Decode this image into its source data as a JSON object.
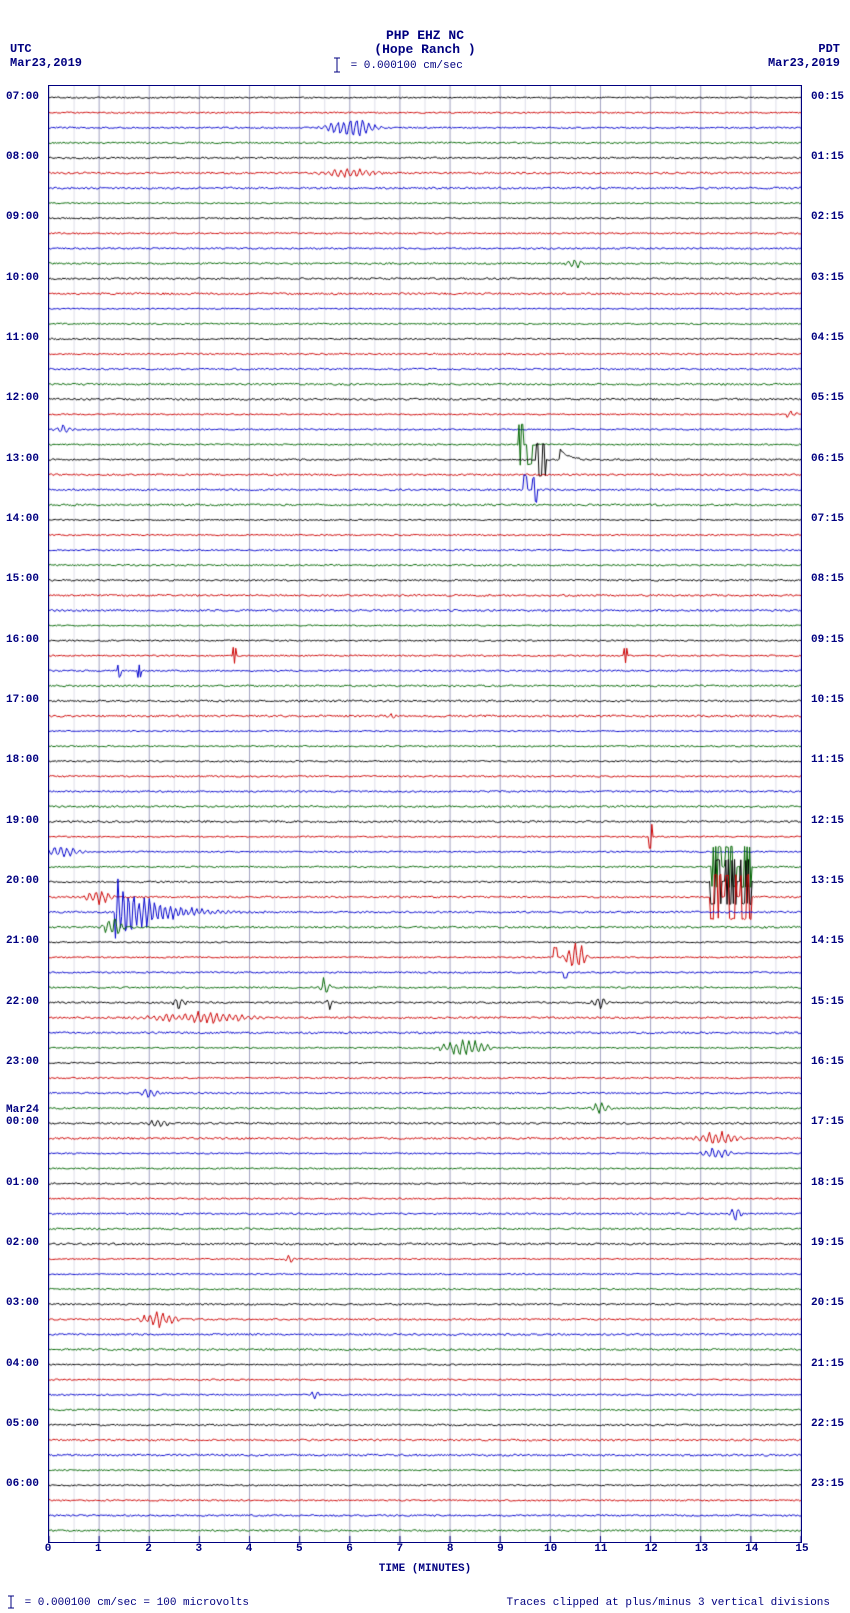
{
  "header": {
    "title_line1": "PHP EHZ NC",
    "title_line2": "(Hope Ranch )",
    "scale_text": " = 0.000100 cm/sec",
    "tz_left": "UTC",
    "date_left": "Mar23,2019",
    "tz_right": "PDT",
    "date_right": "Mar23,2019"
  },
  "footer": {
    "left": " = 0.000100 cm/sec =   100 microvolts",
    "right": "Traces clipped at plus/minus 3 vertical divisions"
  },
  "xaxis": {
    "label": "TIME (MINUTES)",
    "min": 0,
    "max": 15,
    "ticks": [
      0,
      1,
      2,
      3,
      4,
      5,
      6,
      7,
      8,
      9,
      10,
      11,
      12,
      13,
      14,
      15
    ]
  },
  "plot": {
    "n_traces": 96,
    "colors": [
      "#000000",
      "#cc0000",
      "#0000cc",
      "#006600"
    ],
    "grid_color": "#a0a0c0",
    "noise_amp_base": 0.6,
    "noise_amp_jitter": 0.4
  },
  "utc_hour_labels": [
    {
      "trace": 0,
      "text": "07:00"
    },
    {
      "trace": 4,
      "text": "08:00"
    },
    {
      "trace": 8,
      "text": "09:00"
    },
    {
      "trace": 12,
      "text": "10:00"
    },
    {
      "trace": 16,
      "text": "11:00"
    },
    {
      "trace": 20,
      "text": "12:00"
    },
    {
      "trace": 24,
      "text": "13:00"
    },
    {
      "trace": 28,
      "text": "14:00"
    },
    {
      "trace": 32,
      "text": "15:00"
    },
    {
      "trace": 36,
      "text": "16:00"
    },
    {
      "trace": 40,
      "text": "17:00"
    },
    {
      "trace": 44,
      "text": "18:00"
    },
    {
      "trace": 48,
      "text": "19:00"
    },
    {
      "trace": 52,
      "text": "20:00"
    },
    {
      "trace": 56,
      "text": "21:00"
    },
    {
      "trace": 60,
      "text": "22:00"
    },
    {
      "trace": 64,
      "text": "23:00"
    },
    {
      "trace": 68,
      "text": "00:00",
      "day": "Mar24"
    },
    {
      "trace": 72,
      "text": "01:00"
    },
    {
      "trace": 76,
      "text": "02:00"
    },
    {
      "trace": 80,
      "text": "03:00"
    },
    {
      "trace": 84,
      "text": "04:00"
    },
    {
      "trace": 88,
      "text": "05:00"
    },
    {
      "trace": 92,
      "text": "06:00"
    }
  ],
  "pdt_hour_labels": [
    {
      "trace": 0,
      "text": "00:15"
    },
    {
      "trace": 4,
      "text": "01:15"
    },
    {
      "trace": 8,
      "text": "02:15"
    },
    {
      "trace": 12,
      "text": "03:15"
    },
    {
      "trace": 16,
      "text": "04:15"
    },
    {
      "trace": 20,
      "text": "05:15"
    },
    {
      "trace": 24,
      "text": "06:15"
    },
    {
      "trace": 28,
      "text": "07:15"
    },
    {
      "trace": 32,
      "text": "08:15"
    },
    {
      "trace": 36,
      "text": "09:15"
    },
    {
      "trace": 40,
      "text": "10:15"
    },
    {
      "trace": 44,
      "text": "11:15"
    },
    {
      "trace": 48,
      "text": "12:15"
    },
    {
      "trace": 52,
      "text": "13:15"
    },
    {
      "trace": 56,
      "text": "14:15"
    },
    {
      "trace": 60,
      "text": "15:15"
    },
    {
      "trace": 64,
      "text": "16:15"
    },
    {
      "trace": 68,
      "text": "17:15"
    },
    {
      "trace": 72,
      "text": "18:15"
    },
    {
      "trace": 76,
      "text": "19:15"
    },
    {
      "trace": 80,
      "text": "20:15"
    },
    {
      "trace": 84,
      "text": "21:15"
    },
    {
      "trace": 88,
      "text": "22:15"
    },
    {
      "trace": 92,
      "text": "23:15"
    }
  ],
  "events": [
    {
      "trace": 2,
      "x": 6.0,
      "amp": 10,
      "width": 1.4,
      "type": "burst"
    },
    {
      "trace": 5,
      "x": 6.0,
      "amp": 4,
      "width": 1.6,
      "type": "burst"
    },
    {
      "trace": 11,
      "x": 10.5,
      "amp": 4,
      "width": 0.5,
      "type": "burst"
    },
    {
      "trace": 21,
      "x": 14.8,
      "amp": 3,
      "width": 0.4,
      "type": "burst"
    },
    {
      "trace": 22,
      "x": 0.3,
      "amp": 4,
      "width": 0.6,
      "type": "burst"
    },
    {
      "trace": 23,
      "x": 9.4,
      "amp": 20,
      "width": 0.05,
      "type": "spike"
    },
    {
      "trace": 23,
      "x": 9.6,
      "amp": 20,
      "width": 0.05,
      "type": "spike"
    },
    {
      "trace": 24,
      "x": 9.8,
      "amp": 16,
      "width": 0.1,
      "type": "spike"
    },
    {
      "trace": 24,
      "x": 10.2,
      "amp": 10,
      "width": 0.4,
      "type": "pulse"
    },
    {
      "trace": 26,
      "x": 9.5,
      "amp": 14,
      "width": 0.05,
      "type": "spike"
    },
    {
      "trace": 26,
      "x": 9.7,
      "amp": 12,
      "width": 0.05,
      "type": "spike"
    },
    {
      "trace": 37,
      "x": 3.7,
      "amp": 8,
      "width": 0.03,
      "type": "spike"
    },
    {
      "trace": 37,
      "x": 11.5,
      "amp": 8,
      "width": 0.03,
      "type": "spike"
    },
    {
      "trace": 38,
      "x": 1.4,
      "amp": 6,
      "width": 0.03,
      "type": "spike"
    },
    {
      "trace": 38,
      "x": 1.8,
      "amp": 6,
      "width": 0.03,
      "type": "spike"
    },
    {
      "trace": 41,
      "x": 6.8,
      "amp": 3,
      "width": 0.3,
      "type": "burst"
    },
    {
      "trace": 49,
      "x": 12.0,
      "amp": 12,
      "width": 0.04,
      "type": "spike"
    },
    {
      "trace": 50,
      "x": 0.3,
      "amp": 5,
      "width": 1.0,
      "type": "burst"
    },
    {
      "trace": 51,
      "x": 13.3,
      "amp": 20,
      "width": 0.1,
      "type": "spike"
    },
    {
      "trace": 51,
      "x": 13.6,
      "amp": 20,
      "width": 0.1,
      "type": "spike"
    },
    {
      "trace": 51,
      "x": 13.9,
      "amp": 20,
      "width": 0.1,
      "type": "spike"
    },
    {
      "trace": 52,
      "x": 13.3,
      "amp": 22,
      "width": 0.12,
      "type": "spike"
    },
    {
      "trace": 52,
      "x": 13.6,
      "amp": 22,
      "width": 0.12,
      "type": "spike"
    },
    {
      "trace": 52,
      "x": 13.9,
      "amp": 22,
      "width": 0.12,
      "type": "spike"
    },
    {
      "trace": 53,
      "x": 13.3,
      "amp": 22,
      "width": 0.12,
      "type": "spike"
    },
    {
      "trace": 53,
      "x": 13.6,
      "amp": 22,
      "width": 0.12,
      "type": "spike"
    },
    {
      "trace": 53,
      "x": 13.9,
      "amp": 22,
      "width": 0.12,
      "type": "spike"
    },
    {
      "trace": 53,
      "x": 1.0,
      "amp": 6,
      "width": 0.8,
      "type": "burst"
    },
    {
      "trace": 54,
      "x": 1.3,
      "amp": 28,
      "width": 1.2,
      "type": "quake"
    },
    {
      "trace": 55,
      "x": 1.3,
      "amp": 10,
      "width": 0.6,
      "type": "burst"
    },
    {
      "trace": 57,
      "x": 10.5,
      "amp": 14,
      "width": 0.6,
      "type": "burst"
    },
    {
      "trace": 57,
      "x": 10.1,
      "amp": 10,
      "width": 0.04,
      "type": "spike"
    },
    {
      "trace": 58,
      "x": 10.3,
      "amp": 6,
      "width": 0.04,
      "type": "spike"
    },
    {
      "trace": 59,
      "x": 5.5,
      "amp": 8,
      "width": 0.3,
      "type": "burst"
    },
    {
      "trace": 60,
      "x": 2.6,
      "amp": 6,
      "width": 0.4,
      "type": "burst"
    },
    {
      "trace": 60,
      "x": 5.6,
      "amp": 6,
      "width": 0.2,
      "type": "burst"
    },
    {
      "trace": 60,
      "x": 11.0,
      "amp": 6,
      "width": 0.5,
      "type": "burst"
    },
    {
      "trace": 61,
      "x": 3.0,
      "amp": 5,
      "width": 3.0,
      "type": "burst"
    },
    {
      "trace": 63,
      "x": 8.3,
      "amp": 8,
      "width": 1.4,
      "type": "burst"
    },
    {
      "trace": 66,
      "x": 2.0,
      "amp": 4,
      "width": 0.6,
      "type": "burst"
    },
    {
      "trace": 67,
      "x": 11.0,
      "amp": 5,
      "width": 0.6,
      "type": "burst"
    },
    {
      "trace": 68,
      "x": 2.2,
      "amp": 5,
      "width": 0.6,
      "type": "burst"
    },
    {
      "trace": 69,
      "x": 13.3,
      "amp": 6,
      "width": 1.2,
      "type": "burst"
    },
    {
      "trace": 70,
      "x": 13.3,
      "amp": 6,
      "width": 0.8,
      "type": "burst"
    },
    {
      "trace": 74,
      "x": 13.7,
      "amp": 6,
      "width": 0.4,
      "type": "burst"
    },
    {
      "trace": 77,
      "x": 4.8,
      "amp": 4,
      "width": 0.3,
      "type": "burst"
    },
    {
      "trace": 81,
      "x": 2.2,
      "amp": 8,
      "width": 1.0,
      "type": "burst"
    },
    {
      "trace": 86,
      "x": 5.3,
      "amp": 4,
      "width": 0.3,
      "type": "burst"
    }
  ]
}
